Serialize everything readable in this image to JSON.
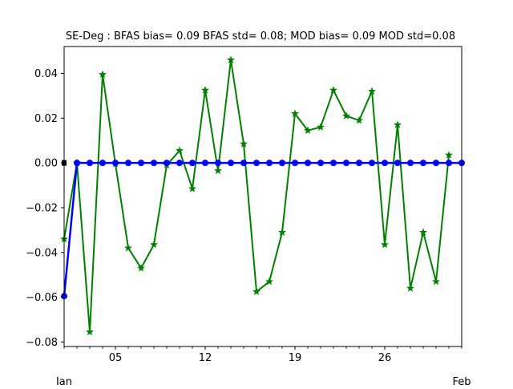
{
  "chart_data": {
    "type": "line",
    "title": "SE-Deg   : BFAS bias= 0.09 BFAS std= 0.08; MOD bias= 0.09 MOD std=0.08",
    "xlabel": "",
    "ylabel": "",
    "x_start": "Jan 01",
    "x_end": "Feb 01",
    "xlim": [
      1,
      32
    ],
    "ylim": [
      -0.082,
      0.052
    ],
    "grid": false,
    "legend": "none",
    "y_ticks": [
      -0.08,
      -0.06,
      -0.04,
      -0.02,
      0.0,
      0.02,
      0.04
    ],
    "y_tick_labels": [
      "−0.08",
      "−0.06",
      "−0.04",
      "−0.02",
      "0.00",
      "0.02",
      "0.04"
    ],
    "x_ticks": [
      {
        "day": 5,
        "label": "05"
      },
      {
        "day": 12,
        "label": "12"
      },
      {
        "day": 19,
        "label": "19"
      },
      {
        "day": 26,
        "label": "26"
      }
    ],
    "x_minor_ticks": [
      1,
      2,
      3,
      4,
      6,
      7,
      8,
      9,
      10,
      11,
      13,
      14,
      15,
      16,
      17,
      18,
      20,
      21,
      22,
      23,
      24,
      25,
      27,
      28,
      29,
      30,
      31,
      32
    ],
    "x_secondary_labels": [
      {
        "day": 1,
        "label": "Jan"
      },
      {
        "day": 32,
        "label": "Feb"
      }
    ],
    "series": [
      {
        "color": "#008000",
        "marker": "star",
        "x": [
          1,
          2,
          3,
          4,
          5,
          6,
          7,
          8,
          9,
          10,
          11,
          12,
          13,
          14,
          15,
          16,
          17,
          18,
          19,
          20,
          21,
          22,
          23,
          24,
          25,
          26,
          27,
          28,
          29,
          30,
          31
        ],
        "values": [
          -0.034,
          0.0,
          -0.0755,
          0.0395,
          -0.0005,
          -0.038,
          -0.047,
          -0.0365,
          -0.001,
          0.0055,
          -0.0115,
          0.0325,
          -0.0035,
          0.046,
          0.0085,
          -0.0575,
          -0.053,
          -0.031,
          0.022,
          0.0145,
          0.016,
          0.0325,
          0.021,
          0.019,
          0.032,
          -0.0365,
          0.017,
          -0.056,
          -0.031,
          -0.053,
          0.0035
        ]
      },
      {
        "color": "#0000ff",
        "marker": "circle",
        "x": [
          1,
          2,
          3,
          4,
          5,
          6,
          7,
          8,
          9,
          10,
          11,
          12,
          13,
          14,
          15,
          16,
          17,
          18,
          19,
          20,
          21,
          22,
          23,
          24,
          25,
          26,
          27,
          28,
          29,
          30,
          31,
          32
        ],
        "values": [
          -0.0595,
          0.0,
          0.0,
          0.0,
          0.0,
          0.0,
          0.0,
          0.0,
          0.0,
          0.0,
          0.0,
          0.0,
          0.0,
          0.0,
          0.0,
          0.0,
          0.0,
          0.0,
          0.0,
          0.0,
          0.0,
          0.0,
          0.0,
          0.0,
          0.0,
          0.0,
          0.0,
          0.0,
          0.0,
          0.0,
          0.0,
          0.0
        ]
      },
      {
        "color": "#000000",
        "marker": "square",
        "x": [
          1,
          2,
          3,
          4,
          5,
          6,
          7,
          8,
          9,
          10,
          11,
          12,
          13,
          14,
          15,
          16,
          17,
          18,
          19,
          20,
          21,
          22,
          23,
          24,
          25,
          26,
          27,
          28,
          29,
          30,
          31,
          32
        ],
        "values": [
          0.0,
          0.0,
          0.0,
          0.0,
          0.0,
          0.0,
          0.0,
          0.0,
          0.0,
          0.0,
          0.0,
          0.0,
          0.0,
          0.0,
          0.0,
          0.0,
          0.0,
          0.0,
          0.0,
          0.0,
          0.0,
          0.0,
          0.0,
          0.0,
          0.0,
          0.0,
          0.0,
          0.0,
          0.0,
          0.0,
          0.0,
          0.0
        ]
      }
    ]
  }
}
